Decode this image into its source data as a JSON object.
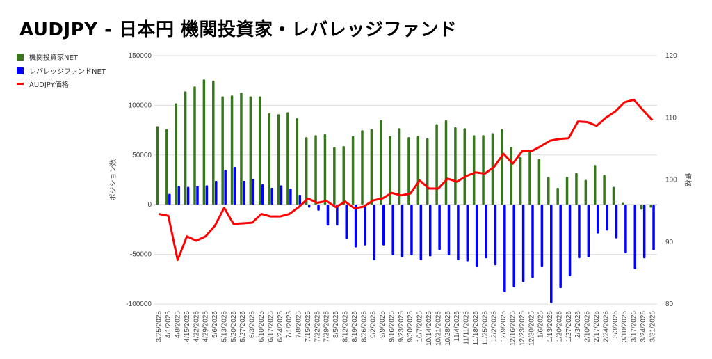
{
  "chart_data": {
    "type": "bar",
    "title": "AUDJPY - 日本円 機関投資家・レバレッジファンド",
    "ylabel": "ポジション数",
    "y2label": "価格",
    "ylim": [
      -100000,
      150000
    ],
    "y2lim": [
      80,
      120
    ],
    "yticks": [
      -100000,
      -50000,
      0,
      50000,
      100000,
      150000
    ],
    "y2ticks": [
      80,
      90,
      100,
      110,
      120
    ],
    "legend_position": "left",
    "grid": true,
    "categories": [
      "3/25/2025",
      "4/1/2025",
      "4/8/2025",
      "4/15/2025",
      "4/22/2025",
      "4/29/2025",
      "5/6/2025",
      "5/13/2025",
      "5/20/2025",
      "5/27/2025",
      "6/3/2025",
      "6/10/2025",
      "6/17/2025",
      "6/24/2025",
      "7/1/2025",
      "7/8/2025",
      "7/15/2025",
      "7/22/2025",
      "7/29/2025",
      "8/5/2025",
      "8/12/2025",
      "8/19/2025",
      "8/26/2025",
      "9/2/2025",
      "9/9/2025",
      "9/16/2025",
      "9/23/2025",
      "9/30/2025",
      "10/7/2025",
      "10/14/2025",
      "10/21/2025",
      "10/28/2025",
      "11/4/2025",
      "11/11/2025",
      "11/18/2025",
      "11/25/2025",
      "12/2/2025",
      "12/9/2025",
      "12/16/2025",
      "12/23/2025",
      "12/30/2025",
      "1/6/2026",
      "1/13/2026",
      "1/20/2026",
      "1/27/2026",
      "2/3/2026",
      "2/10/2026",
      "2/17/2026",
      "2/24/2026",
      "3/3/2026",
      "3/10/2026",
      "3/17/2026",
      "3/24/2026",
      "3/31/2026"
    ],
    "series": [
      {
        "name": "機関投資家NET",
        "type": "bar",
        "axis": "left",
        "color": "#38761d",
        "values": [
          79000,
          76000,
          102000,
          114000,
          119000,
          126000,
          125000,
          109000,
          110000,
          113000,
          109000,
          109000,
          92000,
          91000,
          93000,
          87000,
          68000,
          70000,
          71000,
          58000,
          59000,
          69000,
          75000,
          76000,
          85000,
          69000,
          77000,
          68000,
          69000,
          67000,
          81000,
          85000,
          78000,
          77000,
          70000,
          70000,
          72000,
          76000,
          58000,
          48000,
          53000,
          46000,
          28000,
          17000,
          28000,
          32000,
          25000,
          40000,
          30000,
          18000,
          2000,
          -500,
          -5000,
          -3000
        ]
      },
      {
        "name": "レバレッジファンドNET",
        "type": "bar",
        "axis": "left",
        "color": "#0000ff",
        "values": [
          0,
          11000,
          19000,
          18000,
          19000,
          19500,
          24000,
          35000,
          38000,
          24000,
          26000,
          20500,
          17000,
          19500,
          16000,
          10000,
          -3000,
          -6000,
          -21000,
          -21000,
          -35000,
          -43000,
          -41000,
          -56000,
          -41000,
          -51000,
          -53000,
          -51000,
          -56000,
          -52000,
          -46000,
          -51000,
          -56000,
          -57000,
          -63000,
          -54000,
          -61000,
          -88000,
          -83000,
          -78000,
          -74000,
          -63000,
          -99000,
          -84000,
          -72000,
          -54000,
          -53000,
          -29000,
          -26000,
          -34000,
          -49000,
          -65000,
          -54000,
          -46000
        ]
      },
      {
        "name": "AUDJPY価格",
        "type": "line",
        "axis": "right",
        "color": "#ff0000",
        "values": [
          94.5,
          94.2,
          87.1,
          90.9,
          90.2,
          90.9,
          92.6,
          95.5,
          92.9,
          93.0,
          93.1,
          94.5,
          94.1,
          94.1,
          94.5,
          95.6,
          97.0,
          96.3,
          96.6,
          95.6,
          96.5,
          95.4,
          95.7,
          96.7,
          97.0,
          97.9,
          97.5,
          97.8,
          99.9,
          98.6,
          98.6,
          100.2,
          99.7,
          100.6,
          101.2,
          101.0,
          102.1,
          104.2,
          102.6,
          104.6,
          104.6,
          105.4,
          106.3,
          106.6,
          106.7,
          109.4,
          109.3,
          108.7,
          110.0,
          111.0,
          112.5,
          112.9,
          111.2,
          109.6
        ]
      }
    ]
  }
}
